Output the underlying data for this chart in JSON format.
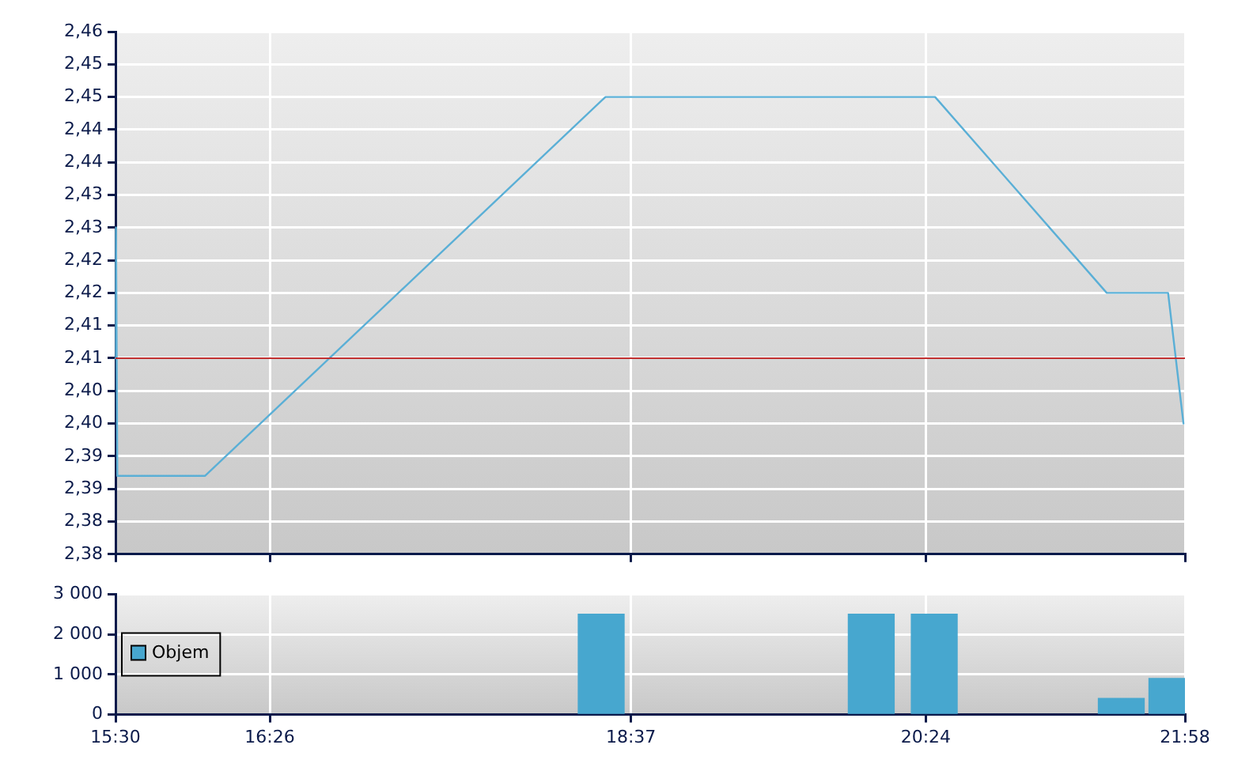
{
  "chart_data": [
    {
      "type": "line",
      "x": [
        15.5,
        15.503,
        15.511,
        16.042,
        18.463,
        20.456,
        21.494,
        21.865,
        21.958
      ],
      "series": [
        {
          "color": "#5aafd6",
          "values": [
            2.41,
            2.43,
            2.392,
            2.392,
            2.45,
            2.45,
            2.42,
            2.42,
            2.4
          ]
        }
      ],
      "xlim": [
        15.5,
        21.967
      ],
      "xticks": [
        {
          "value": 15.5,
          "label": null
        },
        {
          "value": 16.433,
          "label": null
        },
        {
          "value": 18.617,
          "label": null
        },
        {
          "value": 20.4,
          "label": null
        },
        {
          "value": 21.967,
          "label": null
        }
      ],
      "ylim": [
        2.38,
        2.46
      ],
      "yticks": [
        {
          "value": 2.38,
          "label": "2,38"
        },
        {
          "value": 2.385,
          "label": "2,38"
        },
        {
          "value": 2.39,
          "label": "2,39"
        },
        {
          "value": 2.395,
          "label": "2,39"
        },
        {
          "value": 2.4,
          "label": "2,40"
        },
        {
          "value": 2.405,
          "label": "2,40"
        },
        {
          "value": 2.41,
          "label": "2,41"
        },
        {
          "value": 2.415,
          "label": "2,41"
        },
        {
          "value": 2.42,
          "label": "2,42"
        },
        {
          "value": 2.425,
          "label": "2,42"
        },
        {
          "value": 2.43,
          "label": "2,43"
        },
        {
          "value": 2.435,
          "label": "2,43"
        },
        {
          "value": 2.44,
          "label": "2,44"
        },
        {
          "value": 2.445,
          "label": "2,44"
        },
        {
          "value": 2.45,
          "label": "2,45"
        },
        {
          "value": 2.455,
          "label": "2,45"
        },
        {
          "value": 2.46,
          "label": "2,46"
        }
      ],
      "ref_lines": [
        {
          "axis": "y",
          "value": 2.41,
          "color": "#c03030"
        }
      ],
      "grid": true,
      "tick_labels": "y",
      "legend": false,
      "marker": "none"
    },
    {
      "type": "bar",
      "x": [
        18.437,
        20.07,
        20.451,
        21.582,
        21.888
      ],
      "series": [
        {
          "name": "Objem",
          "color": "#47a7cf",
          "values": [
            2500,
            2500,
            2500,
            400,
            900
          ]
        }
      ],
      "xlim": [
        15.5,
        21.967
      ],
      "xticks": [
        {
          "value": 15.5,
          "label": "15:30"
        },
        {
          "value": 16.433,
          "label": "16:26"
        },
        {
          "value": 18.617,
          "label": "18:37"
        },
        {
          "value": 20.4,
          "label": "20:24"
        },
        {
          "value": 21.967,
          "label": "21:58"
        }
      ],
      "ylim": [
        0,
        3000
      ],
      "yticks": [
        {
          "value": 0,
          "label": "0"
        },
        {
          "value": 1000,
          "label": "1 000"
        },
        {
          "value": 2000,
          "label": "2 000"
        },
        {
          "value": 3000,
          "label": "3 000"
        }
      ],
      "grid": true,
      "legend": "left"
    }
  ]
}
